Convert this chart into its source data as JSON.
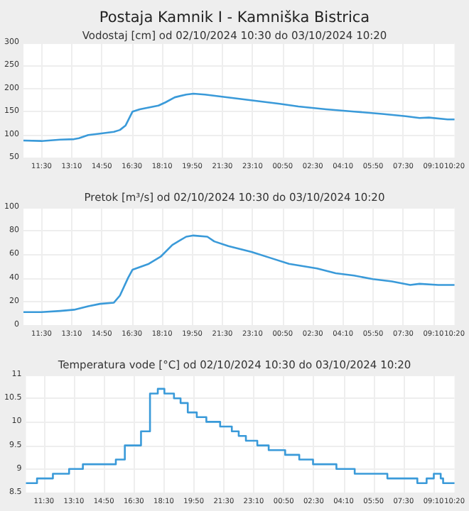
{
  "chart_data": [
    {
      "type": "line",
      "title": "Postaja Kamnik I - Kamniška Bistrica",
      "subtitle": "Vodostaj [cm] od 02/10/2024 10:30 do 03/10/2024 10:20",
      "grid": true,
      "marker": "none",
      "xlim": [
        "2024-10-02T10:30",
        "2024-10-03T10:20"
      ],
      "xticks": [
        {
          "value": "2024-10-02T11:30",
          "label": "11:30"
        },
        {
          "value": "2024-10-02T13:10",
          "label": "13:10"
        },
        {
          "value": "2024-10-02T14:50",
          "label": "14:50"
        },
        {
          "value": "2024-10-02T16:30",
          "label": "16:30"
        },
        {
          "value": "2024-10-02T18:10",
          "label": "18:10"
        },
        {
          "value": "2024-10-02T19:50",
          "label": "19:50"
        },
        {
          "value": "2024-10-02T21:30",
          "label": "21:30"
        },
        {
          "value": "2024-10-02T23:10",
          "label": "23:10"
        },
        {
          "value": "2024-10-03T00:50",
          "label": "00:50"
        },
        {
          "value": "2024-10-03T02:30",
          "label": "02:30"
        },
        {
          "value": "2024-10-03T04:10",
          "label": "04:10"
        },
        {
          "value": "2024-10-03T05:50",
          "label": "05:50"
        },
        {
          "value": "2024-10-03T07:30",
          "label": "07:30"
        },
        {
          "value": "2024-10-03T09:10",
          "label": "09:10"
        },
        {
          "value": "2024-10-03T10:20",
          "label": "10:20"
        }
      ],
      "ylim": [
        50,
        300
      ],
      "yticks": [
        50,
        100,
        150,
        200,
        250,
        300
      ],
      "series": [
        {
          "color": "#3a9ad9",
          "x": [
            "2024-10-02T10:30",
            "2024-10-02T11:30",
            "2024-10-02T12:32",
            "2024-10-02T13:18",
            "2024-10-02T13:34",
            "2024-10-02T14:05",
            "2024-10-02T14:44",
            "2024-10-02T15:30",
            "2024-10-02T15:50",
            "2024-10-02T16:09",
            "2024-10-02T16:32",
            "2024-10-02T16:56",
            "2024-10-02T17:58",
            "2024-10-02T18:21",
            "2024-10-02T18:52",
            "2024-10-02T19:30",
            "2024-10-02T19:54",
            "2024-10-02T20:32",
            "2024-10-02T21:34",
            "2024-10-02T22:36",
            "2024-10-02T23:38",
            "2024-10-03T00:40",
            "2024-10-03T01:42",
            "2024-10-03T03:14",
            "2024-10-03T04:47",
            "2024-10-03T06:20",
            "2024-10-03T07:38",
            "2024-10-03T08:24",
            "2024-10-03T08:55",
            "2024-10-03T09:57",
            "2024-10-03T10:20"
          ],
          "values": [
            87,
            86,
            89,
            90,
            92,
            99,
            102,
            106,
            110,
            120,
            150,
            155,
            163,
            170,
            181,
            187,
            189,
            187,
            182,
            177,
            172,
            167,
            161,
            155,
            150,
            145,
            140,
            136,
            137,
            133,
            133
          ]
        }
      ]
    },
    {
      "type": "line",
      "title": "Pretok [m³/s] od 02/10/2024 10:30 do 03/10/2024 10:20",
      "grid": true,
      "marker": "none",
      "xlim": [
        "2024-10-02T10:30",
        "2024-10-03T10:20"
      ],
      "xticks": [
        {
          "value": "2024-10-02T11:30",
          "label": "11:30"
        },
        {
          "value": "2024-10-02T13:10",
          "label": "13:10"
        },
        {
          "value": "2024-10-02T14:50",
          "label": "14:50"
        },
        {
          "value": "2024-10-02T16:30",
          "label": "16:30"
        },
        {
          "value": "2024-10-02T18:10",
          "label": "18:10"
        },
        {
          "value": "2024-10-02T19:50",
          "label": "19:50"
        },
        {
          "value": "2024-10-02T21:30",
          "label": "21:30"
        },
        {
          "value": "2024-10-02T23:10",
          "label": "23:10"
        },
        {
          "value": "2024-10-03T00:50",
          "label": "00:50"
        },
        {
          "value": "2024-10-03T02:30",
          "label": "02:30"
        },
        {
          "value": "2024-10-03T04:10",
          "label": "04:10"
        },
        {
          "value": "2024-10-03T05:50",
          "label": "05:50"
        },
        {
          "value": "2024-10-03T07:30",
          "label": "07:30"
        },
        {
          "value": "2024-10-03T09:10",
          "label": "09:10"
        },
        {
          "value": "2024-10-03T10:20",
          "label": "10:20"
        }
      ],
      "ylim": [
        0,
        100
      ],
      "yticks": [
        0,
        20,
        40,
        60,
        80,
        100
      ],
      "series": [
        {
          "color": "#3a9ad9",
          "x": [
            "2024-10-02T10:30",
            "2024-10-02T11:30",
            "2024-10-02T12:32",
            "2024-10-02T13:18",
            "2024-10-02T14:05",
            "2024-10-02T14:44",
            "2024-10-02T15:30",
            "2024-10-02T15:50",
            "2024-10-02T16:17",
            "2024-10-02T16:32",
            "2024-10-02T17:26",
            "2024-10-02T18:05",
            "2024-10-02T18:44",
            "2024-10-02T19:30",
            "2024-10-02T19:54",
            "2024-10-02T20:40",
            "2024-10-02T21:03",
            "2024-10-02T21:50",
            "2024-10-02T23:07",
            "2024-10-03T00:09",
            "2024-10-03T01:11",
            "2024-10-03T02:44",
            "2024-10-03T03:46",
            "2024-10-03T04:47",
            "2024-10-03T05:49",
            "2024-10-03T06:52",
            "2024-10-03T07:53",
            "2024-10-03T08:24",
            "2024-10-03T09:26",
            "2024-10-03T10:20"
          ],
          "values": [
            11,
            11,
            12,
            13,
            16,
            18,
            19,
            25,
            40,
            47,
            52,
            58,
            68,
            75,
            76,
            75,
            71,
            67,
            62,
            57,
            52,
            48,
            44,
            42,
            39,
            37,
            34,
            35,
            34,
            34
          ]
        }
      ]
    },
    {
      "type": "step",
      "title": "Temperatura vode [°C] od 02/10/2024 10:30 do 03/10/2024 10:20",
      "grid": true,
      "marker": "none",
      "xlim": [
        "2024-10-02T10:30",
        "2024-10-03T10:20"
      ],
      "xticks": [
        {
          "value": "2024-10-02T11:30",
          "label": "11:30"
        },
        {
          "value": "2024-10-02T13:10",
          "label": "13:10"
        },
        {
          "value": "2024-10-02T14:50",
          "label": "14:50"
        },
        {
          "value": "2024-10-02T16:30",
          "label": "16:30"
        },
        {
          "value": "2024-10-02T18:10",
          "label": "18:10"
        },
        {
          "value": "2024-10-02T19:50",
          "label": "19:50"
        },
        {
          "value": "2024-10-02T21:30",
          "label": "21:30"
        },
        {
          "value": "2024-10-02T23:10",
          "label": "23:10"
        },
        {
          "value": "2024-10-03T00:50",
          "label": "00:50"
        },
        {
          "value": "2024-10-03T02:30",
          "label": "02:30"
        },
        {
          "value": "2024-10-03T04:10",
          "label": "04:10"
        },
        {
          "value": "2024-10-03T05:50",
          "label": "05:50"
        },
        {
          "value": "2024-10-03T07:30",
          "label": "07:30"
        },
        {
          "value": "2024-10-03T09:10",
          "label": "09:10"
        },
        {
          "value": "2024-10-03T10:20",
          "label": "10:20"
        }
      ],
      "ylim": [
        8.5,
        11
      ],
      "yticks": [
        8.5,
        9,
        9.5,
        10,
        10.5,
        11
      ],
      "series": [
        {
          "color": "#3a9ad9",
          "x": [
            "2024-10-02T10:30",
            "2024-10-02T11:07",
            "2024-10-02T12:00",
            "2024-10-02T12:54",
            "2024-10-02T13:40",
            "2024-10-02T15:13",
            "2024-10-02T15:30",
            "2024-10-02T16:00",
            "2024-10-02T16:40",
            "2024-10-02T16:54",
            "2024-10-02T17:24",
            "2024-10-02T17:50",
            "2024-10-02T18:12",
            "2024-10-02T18:44",
            "2024-10-02T19:06",
            "2024-10-02T19:30",
            "2024-10-02T20:00",
            "2024-10-02T20:32",
            "2024-10-02T21:18",
            "2024-10-02T21:57",
            "2024-10-02T22:20",
            "2024-10-02T22:44",
            "2024-10-02T23:22",
            "2024-10-03T00:00",
            "2024-10-03T00:55",
            "2024-10-03T01:42",
            "2024-10-03T02:28",
            "2024-10-03T03:46",
            "2024-10-03T04:47",
            "2024-10-03T06:36",
            "2024-10-03T08:16",
            "2024-10-03T08:47",
            "2024-10-03T09:11",
            "2024-10-03T09:34",
            "2024-10-03T09:42",
            "2024-10-03T10:20"
          ],
          "values": [
            8.7,
            8.8,
            8.9,
            9.0,
            9.1,
            9.1,
            9.2,
            9.5,
            9.5,
            9.8,
            10.6,
            10.7,
            10.6,
            10.5,
            10.4,
            10.2,
            10.1,
            10.0,
            9.9,
            9.8,
            9.7,
            9.6,
            9.5,
            9.4,
            9.3,
            9.2,
            9.1,
            9.0,
            8.9,
            8.8,
            8.7,
            8.8,
            8.9,
            8.8,
            8.7,
            8.7
          ]
        }
      ]
    }
  ]
}
